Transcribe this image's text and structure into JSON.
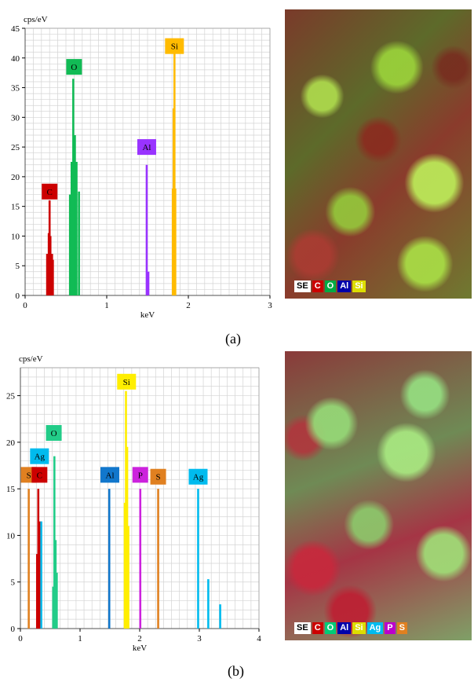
{
  "panel_a": {
    "caption": "(a)",
    "map_legend": [
      {
        "label": "SE",
        "bg": "#ffffff",
        "fg": "#000000"
      },
      {
        "label": "C",
        "bg": "#cc0000",
        "fg": "#ffffff"
      },
      {
        "label": "O",
        "bg": "#00aa44",
        "fg": "#ffffff"
      },
      {
        "label": "Al",
        "bg": "#0000aa",
        "fg": "#ffffff"
      },
      {
        "label": "Si",
        "bg": "#dddd00",
        "fg": "#ffffff"
      }
    ]
  },
  "panel_b": {
    "caption": "(b)",
    "map_legend": [
      {
        "label": "SE",
        "bg": "#ffffff",
        "fg": "#000000"
      },
      {
        "label": "C",
        "bg": "#cc0000",
        "fg": "#ffffff"
      },
      {
        "label": "O",
        "bg": "#00cc77",
        "fg": "#ffffff"
      },
      {
        "label": "Al",
        "bg": "#0000aa",
        "fg": "#ffffff"
      },
      {
        "label": "Si",
        "bg": "#dddd00",
        "fg": "#ffffff"
      },
      {
        "label": "Ag",
        "bg": "#00bbee",
        "fg": "#ffffff"
      },
      {
        "label": "P",
        "bg": "#bb00cc",
        "fg": "#ffffff"
      },
      {
        "label": "S",
        "bg": "#e08020",
        "fg": "#ffffff"
      }
    ]
  },
  "chart_data": [
    {
      "type": "bar",
      "ylabel": "cps/eV",
      "xlabel": "keV",
      "xlim": [
        0,
        3
      ],
      "ylim": [
        0,
        45
      ],
      "xticks": [
        0,
        1,
        2,
        3
      ],
      "yticks": [
        0,
        5,
        10,
        15,
        20,
        25,
        30,
        35,
        40,
        45
      ],
      "grid": true,
      "peaks": [
        {
          "element": "C",
          "color": "#cc0000",
          "label_x": 0.3,
          "label_y": 17.5,
          "lines": [
            {
              "x": 0.27,
              "y": 7
            },
            {
              "x": 0.29,
              "y": 10.5
            },
            {
              "x": 0.3,
              "y": 16
            },
            {
              "x": 0.31,
              "y": 10
            },
            {
              "x": 0.33,
              "y": 7
            },
            {
              "x": 0.34,
              "y": 6
            }
          ]
        },
        {
          "element": "O",
          "color": "#11bb55",
          "label_x": 0.6,
          "label_y": 38.5,
          "lines": [
            {
              "x": 0.55,
              "y": 17
            },
            {
              "x": 0.57,
              "y": 22.5
            },
            {
              "x": 0.59,
              "y": 36.5
            },
            {
              "x": 0.61,
              "y": 27
            },
            {
              "x": 0.63,
              "y": 22.5
            },
            {
              "x": 0.66,
              "y": 17.5
            }
          ]
        },
        {
          "element": "Al",
          "color": "#9933ff",
          "label_x": 1.49,
          "label_y": 25,
          "lines": [
            {
              "x": 1.49,
              "y": 22
            },
            {
              "x": 1.51,
              "y": 4
            }
          ]
        },
        {
          "element": "Si",
          "color": "#ffbb00",
          "label_x": 1.83,
          "label_y": 42,
          "lines": [
            {
              "x": 1.81,
              "y": 18
            },
            {
              "x": 1.82,
              "y": 31.5
            },
            {
              "x": 1.83,
              "y": 41
            },
            {
              "x": 1.84,
              "y": 18
            }
          ]
        }
      ]
    },
    {
      "type": "bar",
      "ylabel": "cps/eV",
      "xlabel": "keV",
      "xlim": [
        0,
        4
      ],
      "ylim": [
        0,
        28
      ],
      "xticks": [
        0,
        1,
        2,
        3,
        4
      ],
      "yticks": [
        0,
        5,
        10,
        15,
        20,
        25
      ],
      "grid": true,
      "peaks": [
        {
          "element": "S",
          "color": "#e08020",
          "label_x": 0.14,
          "label_y": 16.5,
          "lines": [
            {
              "x": 0.14,
              "y": 15
            }
          ]
        },
        {
          "element": "C",
          "color": "#cc0000",
          "label_x": 0.32,
          "label_y": 16.5,
          "lines": [
            {
              "x": 0.28,
              "y": 8
            },
            {
              "x": 0.3,
              "y": 15
            },
            {
              "x": 0.33,
              "y": 11.5
            }
          ]
        },
        {
          "element": "Ag",
          "color": "#00bbee",
          "label_x": 0.32,
          "label_y": 18.5,
          "lines": [
            {
              "x": 0.35,
              "y": 11.5
            }
          ]
        },
        {
          "element": "O",
          "color": "#22cc88",
          "label_x": 0.56,
          "label_y": 21,
          "lines": [
            {
              "x": 0.55,
              "y": 4.5
            },
            {
              "x": 0.57,
              "y": 18.5
            },
            {
              "x": 0.59,
              "y": 9.5
            },
            {
              "x": 0.61,
              "y": 6
            }
          ]
        },
        {
          "element": "Al",
          "color": "#1177cc",
          "label_x": 1.5,
          "label_y": 16.5,
          "lines": [
            {
              "x": 1.49,
              "y": 15
            }
          ]
        },
        {
          "element": "Si",
          "color": "#ffee00",
          "label_x": 1.78,
          "label_y": 26.5,
          "lines": [
            {
              "x": 1.75,
              "y": 13.5
            },
            {
              "x": 1.77,
              "y": 25.5
            },
            {
              "x": 1.79,
              "y": 19.5
            },
            {
              "x": 1.81,
              "y": 11
            }
          ]
        },
        {
          "element": "P",
          "color": "#cc22dd",
          "label_x": 2.01,
          "label_y": 16.5,
          "lines": [
            {
              "x": 2.01,
              "y": 15
            }
          ]
        },
        {
          "element": "S",
          "color": "#e08020",
          "label_x": 2.31,
          "label_y": 16.3,
          "lines": [
            {
              "x": 2.31,
              "y": 15
            }
          ]
        },
        {
          "element": "Ag",
          "color": "#00bbee",
          "label_x": 2.98,
          "label_y": 16.3,
          "lines": [
            {
              "x": 2.98,
              "y": 15
            },
            {
              "x": 3.15,
              "y": 5.3
            },
            {
              "x": 3.35,
              "y": 2.6
            }
          ]
        }
      ]
    }
  ]
}
